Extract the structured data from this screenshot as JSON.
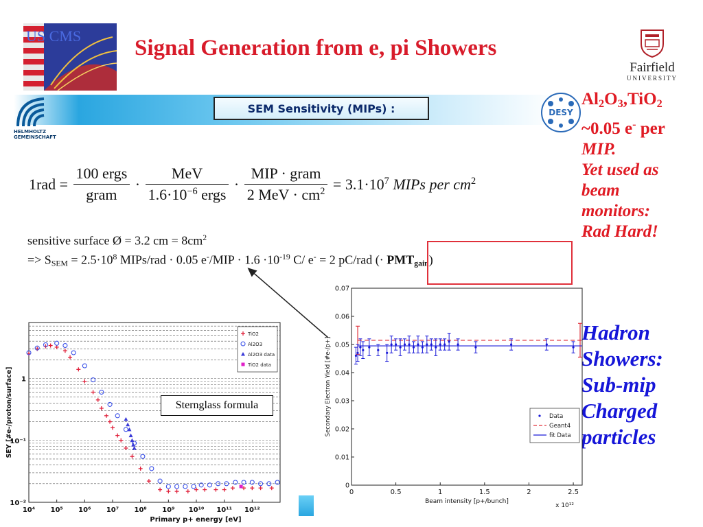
{
  "slide": {
    "title": "Signal Generation from e, pi Showers",
    "logos": {
      "uscms": "US CMS",
      "fairfield": "Fairfield",
      "fairfield_sub": "UNIVERSITY",
      "helmholtz": "HELMHOLTZ GEMEINSCHAFT",
      "desy": "DESY"
    },
    "banner_label": "SEM Sensitivity (MIPs) :",
    "equation": {
      "lhs": "1rad =",
      "f1_num": "100 ergs",
      "f1_den": "gram",
      "f2_num": "MeV",
      "f2_den_a": "1.6·10",
      "f2_den_exp": "−6",
      "f2_den_b": " ergs",
      "f3_num": "MIP · gram",
      "f3_den_a": "2 MeV · cm",
      "f3_den_exp": "2",
      "rhs_a": "= 3.1·10",
      "rhs_exp": "7",
      "rhs_b": " MIPs per cm",
      "rhs_exp2": "2"
    },
    "surface_line": {
      "a": "sensitive surface Ø = 3.2 cm = 8cm",
      "exp": "2"
    },
    "ssem_line": {
      "a": "=> S",
      "sub": "SEM",
      "b": " = 2.5·10",
      "exp1": "8",
      "c": " MIPs/rad · 0.05 e",
      "exp2": "-",
      "d": "/MIP · 1.6 ·10",
      "exp3": "-19",
      "e": " C/ e",
      "exp4": "-",
      "f": " = 2 pC/rad (· ",
      "pmt": "PMT",
      "gain": "gain",
      "g": ")"
    },
    "right_red": {
      "l1_a": "Al",
      "l1_s1": "2",
      "l1_b": "O",
      "l1_s2": "3",
      "l1_c": ",TiO",
      "l1_s3": "2",
      "l2_a": "~0.05 e",
      "l2_sup": "-",
      "l2_b": " per",
      "l3": "MIP.",
      "l4": "Yet used as",
      "l5": "beam",
      "l6": "monitors:",
      "l7": "Rad Hard!"
    },
    "right_blue": [
      "Hadron",
      "Showers:",
      "Sub-mip",
      "Charged",
      "particles"
    ],
    "sternglass_label": "Sternglass formula",
    "colors": {
      "title_red": "#d81b2a",
      "text_red": "#e01b24",
      "text_blue": "#1515d8",
      "banner_cyan": "#2aa6e0"
    }
  },
  "chart_data": [
    {
      "type": "scatter",
      "xlabel": "Primary p+ energy [eV]",
      "ylabel": "SEY [#e-/proton/surface]",
      "xscale": "log",
      "yscale": "log",
      "xlim": [
        10000,
        10000000000000.0
      ],
      "ylim": [
        0.01,
        8
      ],
      "xticks": [
        10000,
        100000,
        1000000,
        10000000,
        100000000,
        1000000000,
        10000000000,
        100000000000,
        1000000000000
      ],
      "xtick_labels": [
        "10⁴",
        "10⁵",
        "10⁶",
        "10⁷",
        "10⁸",
        "10⁹",
        "10¹⁰",
        "10¹¹",
        "10¹²"
      ],
      "yticks": [
        0.01,
        0.1,
        1
      ],
      "ytick_labels": [
        "10⁻²",
        "10⁻¹",
        "1"
      ],
      "legend_position": "top-right",
      "series": [
        {
          "name": "TiO2",
          "color": "#e0203a",
          "marker": "plus",
          "x": [
            10000,
            20000,
            40000,
            60000,
            100000,
            200000,
            300000,
            600000,
            1000000,
            2000000,
            3000000,
            4000000,
            6000000,
            8000000,
            10000000,
            15000000,
            20000000,
            30000000,
            50000000,
            100000000,
            200000000,
            500000000,
            1000000000,
            2000000000,
            5000000000,
            10000000000,
            20000000000,
            50000000000,
            100000000000,
            200000000000,
            500000000000,
            1000000000000,
            2000000000000,
            5000000000000
          ],
          "y": [
            2.5,
            3.0,
            3.3,
            3.4,
            3.2,
            2.8,
            2.2,
            1.4,
            0.9,
            0.6,
            0.45,
            0.33,
            0.25,
            0.2,
            0.16,
            0.12,
            0.1,
            0.075,
            0.055,
            0.035,
            0.022,
            0.016,
            0.015,
            0.015,
            0.015,
            0.016,
            0.016,
            0.016,
            0.016,
            0.017,
            0.017,
            0.017,
            0.017,
            0.017
          ]
        },
        {
          "name": "Al2O3",
          "color": "#3a50e8",
          "marker": "circle",
          "x": [
            10000,
            20000,
            40000,
            100000,
            200000,
            400000,
            1000000,
            2000000,
            4000000,
            8000000,
            15000000,
            30000000,
            60000000,
            120000000,
            250000000,
            500000000,
            1000000000,
            2000000000,
            4000000000,
            8000000000,
            15000000000,
            30000000000,
            60000000000,
            120000000000,
            250000000000,
            500000000000,
            1000000000000,
            2000000000000,
            4000000000000,
            8000000000000
          ],
          "y": [
            2.6,
            3.1,
            3.5,
            3.7,
            3.4,
            2.6,
            1.6,
            0.95,
            0.6,
            0.38,
            0.25,
            0.15,
            0.09,
            0.055,
            0.035,
            0.022,
            0.018,
            0.018,
            0.018,
            0.018,
            0.019,
            0.019,
            0.02,
            0.02,
            0.021,
            0.021,
            0.021,
            0.02,
            0.02,
            0.021
          ]
        },
        {
          "name": "Al2O3 data",
          "color": "#3a3ad8",
          "marker": "triangle",
          "x": [
            30000000,
            35000000,
            40000000,
            45000000,
            50000000,
            55000000,
            60000000
          ],
          "y": [
            0.22,
            0.18,
            0.15,
            0.12,
            0.1,
            0.085,
            0.075
          ]
        },
        {
          "name": "TiO2 data",
          "color": "#e020c8",
          "marker": "square",
          "x": [
            400000000000
          ],
          "y": [
            0.018
          ]
        }
      ]
    },
    {
      "type": "scatter",
      "xlabel": "Beam intensity [p+/bunch]",
      "ylabel": "Secondary Electron Yield [#e-/p+]",
      "x_multiplier": "x 10¹²",
      "xlim": [
        0,
        2.6
      ],
      "ylim": [
        0,
        0.07
      ],
      "xticks": [
        0,
        0.5,
        1,
        1.5,
        2,
        2.5
      ],
      "xtick_labels": [
        "0",
        "0.5",
        "1",
        "1.5",
        "2",
        "2.5"
      ],
      "yticks": [
        0,
        0.01,
        0.02,
        0.03,
        0.04,
        0.05,
        0.06,
        0.07
      ],
      "ytick_labels": [
        "0",
        "0.01",
        "0.02",
        "0.03",
        "0.04",
        "0.05",
        "0.06",
        "0.07"
      ],
      "legend_position": "bottom-right",
      "series": [
        {
          "name": "Data",
          "color": "#1a1ad8",
          "marker": "dot",
          "x": [
            0.05,
            0.07,
            0.1,
            0.13,
            0.2,
            0.3,
            0.4,
            0.45,
            0.5,
            0.55,
            0.6,
            0.65,
            0.7,
            0.75,
            0.8,
            0.85,
            0.9,
            0.95,
            1.0,
            1.05,
            1.1,
            1.2,
            1.4,
            1.8,
            2.2,
            2.5
          ],
          "y": [
            0.046,
            0.047,
            0.049,
            0.048,
            0.049,
            0.048,
            0.047,
            0.05,
            0.05,
            0.049,
            0.05,
            0.05,
            0.049,
            0.05,
            0.049,
            0.05,
            0.05,
            0.049,
            0.05,
            0.05,
            0.051,
            0.05,
            0.049,
            0.05,
            0.05,
            0.049
          ],
          "err": [
            0.003,
            0.003,
            0.003,
            0.003,
            0.003,
            0.002,
            0.003,
            0.003,
            0.002,
            0.003,
            0.002,
            0.003,
            0.002,
            0.003,
            0.002,
            0.003,
            0.002,
            0.003,
            0.002,
            0.002,
            0.003,
            0.002,
            0.002,
            0.002,
            0.002,
            0.002
          ]
        },
        {
          "name": "Geant4",
          "color": "#e0303a",
          "style": "dashed",
          "x": [
            0.07,
            2.6
          ],
          "y": [
            0.0515,
            0.0515
          ],
          "err_ends": [
            0.005,
            0.006
          ]
        },
        {
          "name": "fit Data",
          "color": "#1a1ad8",
          "style": "solid",
          "x": [
            0.07,
            2.6
          ],
          "y": [
            0.0495,
            0.0495
          ]
        }
      ]
    }
  ]
}
